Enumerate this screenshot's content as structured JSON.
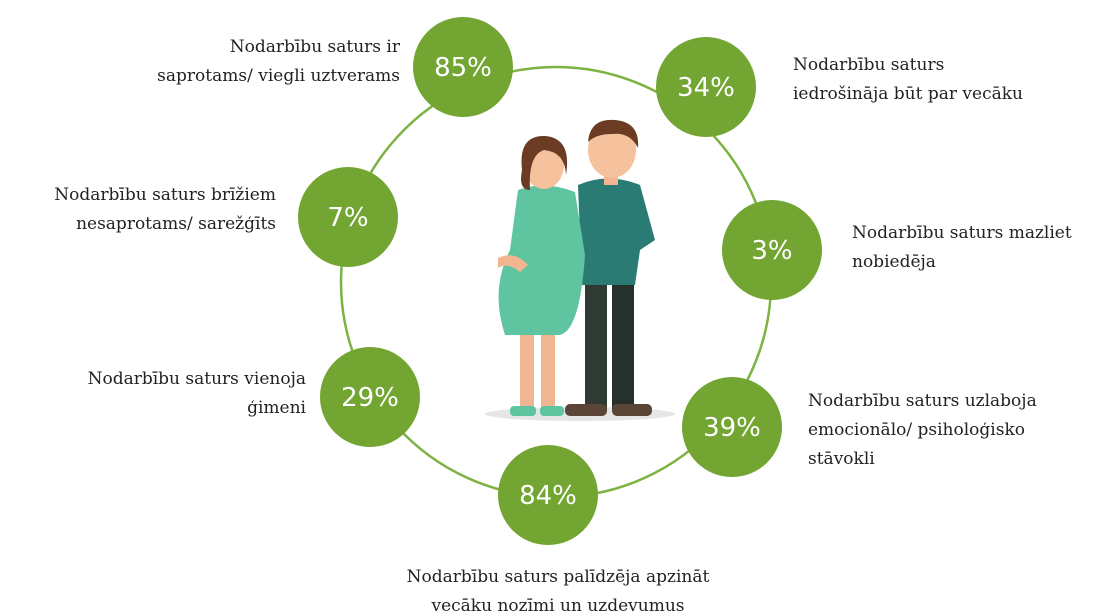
{
  "items": [
    {
      "value_label": "85%",
      "label": [
        "Nodarbību saturs ir",
        "saprotams/ viegli uztverams"
      ]
    },
    {
      "value_label": "34%",
      "label": [
        "Nodarbību saturs",
        "iedrošināja būt par vecāku"
      ]
    },
    {
      "value_label": "3%",
      "label": [
        "Nodarbību saturs mazliet",
        "nobiedēja"
      ]
    },
    {
      "value_label": "39%",
      "label": [
        "Nodarbību saturs uzlaboja",
        "emocionālo/ psiholoģisko",
        "stāvokli"
      ]
    },
    {
      "value_label": "84%",
      "label": [
        "Nodarbību saturs palīdzēja apzināt",
        "vecāku nozīmi un uzdevumus"
      ]
    },
    {
      "value_label": "29%",
      "label": [
        "Nodarbību saturs vienoja",
        "ģimeni"
      ]
    },
    {
      "value_label": "7%",
      "label": [
        "Nodarbību saturs brīžiem",
        "nesaprotams/ sarežģīts"
      ]
    }
  ]
}
